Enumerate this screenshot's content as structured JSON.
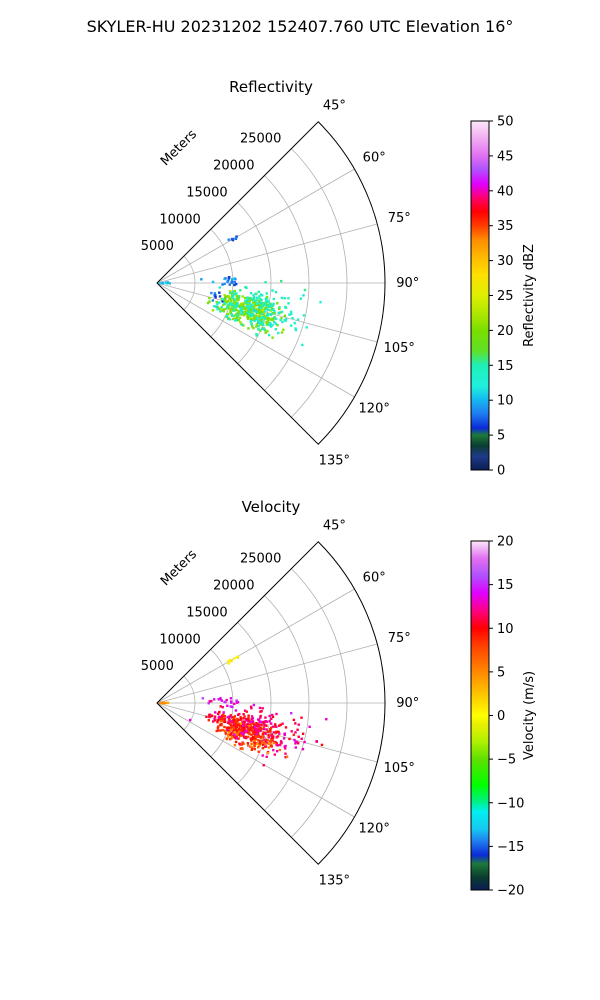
{
  "title": "SKYLER-HU  20231202  152407.760 UTC Elevation 16°",
  "chart_data": [
    {
      "type": "polar-sector",
      "title": "Reflectivity",
      "radial_axis_label": "Meters",
      "radial_ticks": [
        5000,
        10000,
        15000,
        20000,
        25000
      ],
      "radial_tick_labels": [
        "5000",
        "10000",
        "15000",
        "20000",
        "25000"
      ],
      "rmax": 30000,
      "theta_ticks": [
        45,
        60,
        75,
        90,
        105,
        120,
        135
      ],
      "theta_tick_labels": [
        "45°",
        "60°",
        "75°",
        "90°",
        "105°",
        "120°",
        "135°"
      ],
      "theta_range": [
        45,
        135
      ],
      "grid": true,
      "colorbar": {
        "label": "Reflectivity dBZ",
        "range": [
          0,
          50
        ],
        "ticks": [
          0,
          5,
          10,
          15,
          20,
          25,
          30,
          35,
          40,
          45,
          50
        ],
        "tick_labels": [
          "0",
          "5",
          "10",
          "15",
          "20",
          "25",
          "30",
          "35",
          "40",
          "45",
          "50"
        ],
        "stops": [
          [
            0,
            "#0b1d55"
          ],
          [
            2,
            "#1e3a8a"
          ],
          [
            3.5,
            "#0a3d30"
          ],
          [
            5,
            "#1f7a3a"
          ],
          [
            6,
            "#0a2bd6"
          ],
          [
            8,
            "#1f7af0"
          ],
          [
            10,
            "#16b6f0"
          ],
          [
            12,
            "#1ff0dd"
          ],
          [
            15,
            "#1ff0b8"
          ],
          [
            17,
            "#5fe12a"
          ],
          [
            20,
            "#7adf00"
          ],
          [
            22,
            "#a8e600"
          ],
          [
            25,
            "#ddf000"
          ],
          [
            28,
            "#ffe000"
          ],
          [
            30,
            "#ffc200"
          ],
          [
            33,
            "#ff8c00"
          ],
          [
            35,
            "#ff3b00"
          ],
          [
            37,
            "#ff0000"
          ],
          [
            39,
            "#ff0070"
          ],
          [
            41,
            "#e000ff"
          ],
          [
            43,
            "#b050ff"
          ],
          [
            45,
            "#e070f0"
          ],
          [
            48,
            "#f4b8f2"
          ],
          [
            50,
            "#fde8fb"
          ]
        ]
      },
      "clusters": [
        {
          "theta": 60,
          "r": 11600,
          "value": 7,
          "spread_t": 1.0,
          "spread_r": 600,
          "count": 8
        },
        {
          "theta": 88,
          "r": 9200,
          "value": 8,
          "spread_t": 3.5,
          "spread_r": 1800,
          "count": 22
        },
        {
          "theta": 90,
          "r": 1000,
          "value": 11,
          "spread_t": 2.5,
          "spread_r": 800,
          "count": 10
        },
        {
          "theta": 103,
          "r": 8000,
          "value": 7,
          "spread_t": 3.0,
          "spread_r": 1200,
          "count": 10
        },
        {
          "theta": 107,
          "r": 12500,
          "value": 20,
          "spread_t": 6.0,
          "spread_r": 3000,
          "count": 320
        },
        {
          "theta": 104,
          "r": 14500,
          "value": 14,
          "spread_t": 8.0,
          "spread_r": 4500,
          "count": 170
        },
        {
          "theta": 112,
          "r": 12800,
          "value": 13,
          "spread_t": 5.0,
          "spread_r": 3000,
          "count": 40
        }
      ]
    },
    {
      "type": "polar-sector",
      "title": "Velocity",
      "radial_axis_label": "Meters",
      "radial_ticks": [
        5000,
        10000,
        15000,
        20000,
        25000
      ],
      "radial_tick_labels": [
        "5000",
        "10000",
        "15000",
        "20000",
        "25000"
      ],
      "rmax": 30000,
      "theta_ticks": [
        45,
        60,
        75,
        90,
        105,
        120,
        135
      ],
      "theta_tick_labels": [
        "45°",
        "60°",
        "75°",
        "90°",
        "105°",
        "120°",
        "135°"
      ],
      "theta_range": [
        45,
        135
      ],
      "grid": true,
      "colorbar": {
        "label": "Velocity (m/s)",
        "range": [
          -20,
          20
        ],
        "ticks": [
          -20,
          -15,
          -10,
          -5,
          0,
          5,
          10,
          15,
          20
        ],
        "tick_labels": [
          "−20",
          "−15",
          "−10",
          "−5",
          "0",
          "5",
          "10",
          "15",
          "20"
        ],
        "stops": [
          [
            -20,
            "#0b1d55"
          ],
          [
            -18.5,
            "#0a3d30"
          ],
          [
            -17,
            "#1f7a3a"
          ],
          [
            -16,
            "#0a2bd6"
          ],
          [
            -14.5,
            "#1f7af0"
          ],
          [
            -13,
            "#16c8f0"
          ],
          [
            -11,
            "#00f0f0"
          ],
          [
            -10,
            "#00f090"
          ],
          [
            -8,
            "#00ff00"
          ],
          [
            -5,
            "#60e000"
          ],
          [
            -3,
            "#b0f000"
          ],
          [
            -1,
            "#e8f000"
          ],
          [
            0,
            "#ffff00"
          ],
          [
            2,
            "#ffd000"
          ],
          [
            4,
            "#ffa000"
          ],
          [
            6,
            "#ff7000"
          ],
          [
            8,
            "#ff4000"
          ],
          [
            10,
            "#ff0000"
          ],
          [
            12,
            "#ff0080"
          ],
          [
            14,
            "#e000ff"
          ],
          [
            16,
            "#b050ff"
          ],
          [
            18,
            "#e070f0"
          ],
          [
            20,
            "#fde8fb"
          ]
        ]
      },
      "clusters": [
        {
          "theta": 60,
          "r": 11600,
          "value": 1,
          "spread_t": 1.0,
          "spread_r": 600,
          "count": 8
        },
        {
          "theta": 88,
          "r": 9200,
          "value": 14,
          "spread_t": 3.5,
          "spread_r": 1800,
          "count": 22
        },
        {
          "theta": 90,
          "r": 1000,
          "value": 4,
          "spread_t": 2.5,
          "spread_r": 800,
          "count": 10
        },
        {
          "theta": 103,
          "r": 8000,
          "value": 11,
          "spread_t": 3.0,
          "spread_r": 1200,
          "count": 10
        },
        {
          "theta": 107,
          "r": 12500,
          "value": 9,
          "spread_t": 6.0,
          "spread_r": 3000,
          "count": 320
        },
        {
          "theta": 104,
          "r": 14500,
          "value": 12,
          "spread_t": 8.0,
          "spread_r": 4500,
          "count": 170
        },
        {
          "theta": 112,
          "r": 12800,
          "value": 6,
          "spread_t": 5.0,
          "spread_r": 3000,
          "count": 40
        }
      ]
    }
  ]
}
